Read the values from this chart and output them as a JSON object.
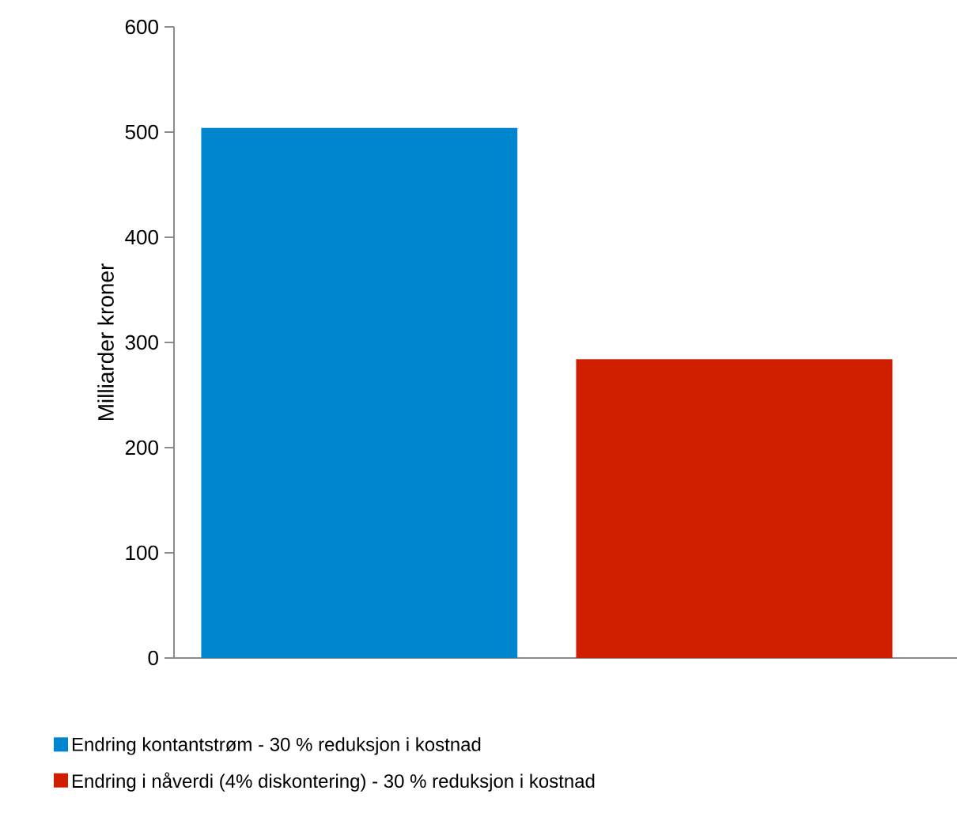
{
  "chart_data": {
    "type": "bar",
    "ylabel": "Milliarder kroner",
    "categories": [
      null
    ],
    "series": [
      {
        "name": "Endring kontantstrøm - 30 % reduksjon i kostnad",
        "color": "#0085cf",
        "values": [
          504
        ]
      },
      {
        "name": "Endring i nåverdi (4% diskontering) - 30 % reduksjon i kostnad",
        "color": "#d01e00",
        "values": [
          284
        ]
      }
    ],
    "ylim": [
      0,
      600
    ],
    "yticks": [
      0,
      100,
      200,
      300,
      400,
      500,
      600
    ],
    "grid": false,
    "legend": "bottom"
  }
}
